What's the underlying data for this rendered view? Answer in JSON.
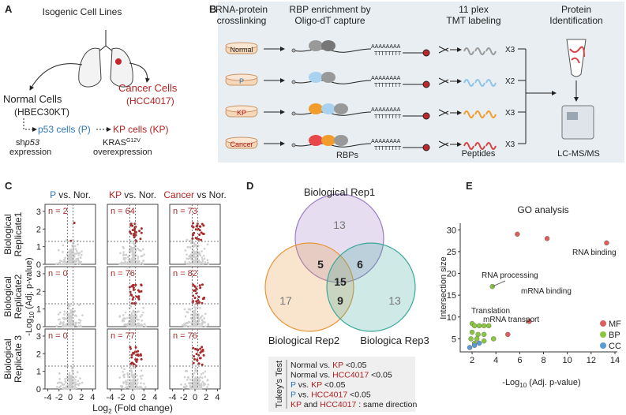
{
  "panel_a": {
    "label": "A",
    "title": "Isogenic Cell Lines",
    "normal": "Normal Cells",
    "normal_sub": "(HBEC30KT)",
    "cancer": "Cancer Cells",
    "cancer_sub": "(HCC4017)",
    "p53": "p53 cells (P)",
    "kp": "KP cells (KP)",
    "sh": "sh",
    "sh_gene": "p53",
    "expression": "expression",
    "kras": "KRAS",
    "kras_sup": "G12V",
    "overexpression": "overexpression"
  },
  "panel_b": {
    "label": "B",
    "steps": [
      [
        "RNA-protein",
        "crosslinking"
      ],
      [
        "RBP enrichment by",
        "Oligo-dT capture"
      ],
      [
        "11 plex",
        "TMT labeling"
      ],
      [
        "Protein",
        "Identification"
      ]
    ],
    "samples": [
      "Normal",
      "P",
      "KP",
      "Cancer"
    ],
    "poly_a": "AAAAAAAA",
    "poly_t": "TTTTTTTT",
    "multipliers": [
      "X3",
      "X2",
      "X3",
      "X3"
    ],
    "rbps": "RBPs",
    "peptides": "Peptides",
    "ms": "LC-MS/MS"
  },
  "panel_c": {
    "label": "C",
    "headers": [
      [
        {
          "text": "P",
          "color": "#2e75b6"
        },
        {
          "text": " vs. Nor."
        }
      ],
      [
        {
          "text": "KP",
          "color": "#b22222"
        },
        {
          "text": " vs. Nor."
        }
      ],
      [
        {
          "text": "Cancer",
          "color": "#b22222"
        },
        {
          "text": " vs Nor."
        }
      ]
    ],
    "rows": [
      [
        "Biological",
        "Replicate1"
      ],
      [
        "Biological",
        "Replicate2"
      ],
      [
        "Biological",
        "Replicate 3"
      ]
    ],
    "n_labels": [
      [
        "n = 2",
        "n = 64",
        "n = 73"
      ],
      [
        "n = 0",
        "n = 76",
        "n = 82"
      ],
      [
        "n = 0",
        "n = 77",
        "n = 76"
      ]
    ],
    "ylabel": [
      "-Log",
      "10",
      " (Adj. p-value)"
    ],
    "xlabel": [
      "Log",
      "2",
      " (Fold change)"
    ],
    "xlim": [
      -4.5,
      4.5
    ],
    "ylim": [
      0,
      3.4
    ],
    "xticks": [
      -4,
      -2,
      0,
      2,
      4
    ],
    "yticks": [
      0,
      1,
      2,
      3
    ],
    "vlines": [
      -0.5,
      0.5
    ],
    "hline": 1.3
  },
  "panel_d": {
    "label": "D",
    "sets": [
      "Biological Rep1",
      "Biological Rep2",
      "Biologica Rep3"
    ],
    "only_1": 13,
    "only_2": 17,
    "only_3": 13,
    "rep1_rep2": 5,
    "rep1_rep3": 6,
    "rep2_rep3": 9,
    "all": 15,
    "tukey_title": "Tukey's Test",
    "tukey": [
      [
        {
          "text": "Normal vs. "
        },
        {
          "text": "KP",
          "color": "#b22222"
        },
        {
          "text": " <0.05"
        }
      ],
      [
        {
          "text": "Normal vs. "
        },
        {
          "text": "HCC4017",
          "color": "#b22222"
        },
        {
          "text": " <0.05"
        }
      ],
      [
        {
          "text": "P",
          "color": "#2e75b6"
        },
        {
          "text": " vs. "
        },
        {
          "text": "KP",
          "color": "#b22222"
        },
        {
          "text": " <0.05"
        }
      ],
      [
        {
          "text": "P",
          "color": "#2e75b6"
        },
        {
          "text": " vs. "
        },
        {
          "text": "HCC4017",
          "color": "#b22222"
        },
        {
          "text": " <0.05"
        }
      ],
      [
        {
          "text": "KP",
          "color": "#b22222"
        },
        {
          "text": " and "
        },
        {
          "text": "HCC4017",
          "color": "#b22222"
        },
        {
          "text": " : same direction"
        }
      ]
    ]
  },
  "panel_e": {
    "label": "E"
  },
  "chart_data": {
    "type": "scatter",
    "title": "GO analysis",
    "xlabel": [
      "-Log",
      "10",
      " (Adj. p-value)"
    ],
    "ylabel": "Intersection size",
    "xlim": [
      1,
      14.2
    ],
    "ylim": [
      2,
      31.5
    ],
    "xticks": [
      2,
      4,
      6,
      8,
      10,
      12,
      14
    ],
    "yticks": [
      5,
      10,
      15,
      20,
      25,
      30
    ],
    "annotations": [
      "RNA binding",
      "RNA processing",
      "Translation",
      "mRNA binding",
      "mRNA transport"
    ],
    "series": [
      {
        "name": "MF",
        "color": "#d9605c",
        "x": [
          5.8,
          8.3,
          13.3,
          6.8,
          5
        ],
        "values": [
          29,
          28,
          27,
          9,
          6
        ]
      },
      {
        "name": "BP",
        "color": "#8cc63f",
        "x": [
          3.7,
          2,
          2.2,
          2.6,
          3,
          3.4,
          2,
          2.5,
          3,
          1.9,
          2.4,
          3,
          2.2,
          3.8
        ],
        "values": [
          17,
          8.5,
          8,
          8,
          8,
          8,
          6.5,
          6,
          6,
          5,
          5,
          4.5,
          4,
          5
        ]
      },
      {
        "name": "CC",
        "color": "#5b9bd5",
        "x": [
          1.8,
          2.2,
          2.6
        ],
        "values": [
          3,
          3.5,
          4
        ]
      }
    ]
  }
}
